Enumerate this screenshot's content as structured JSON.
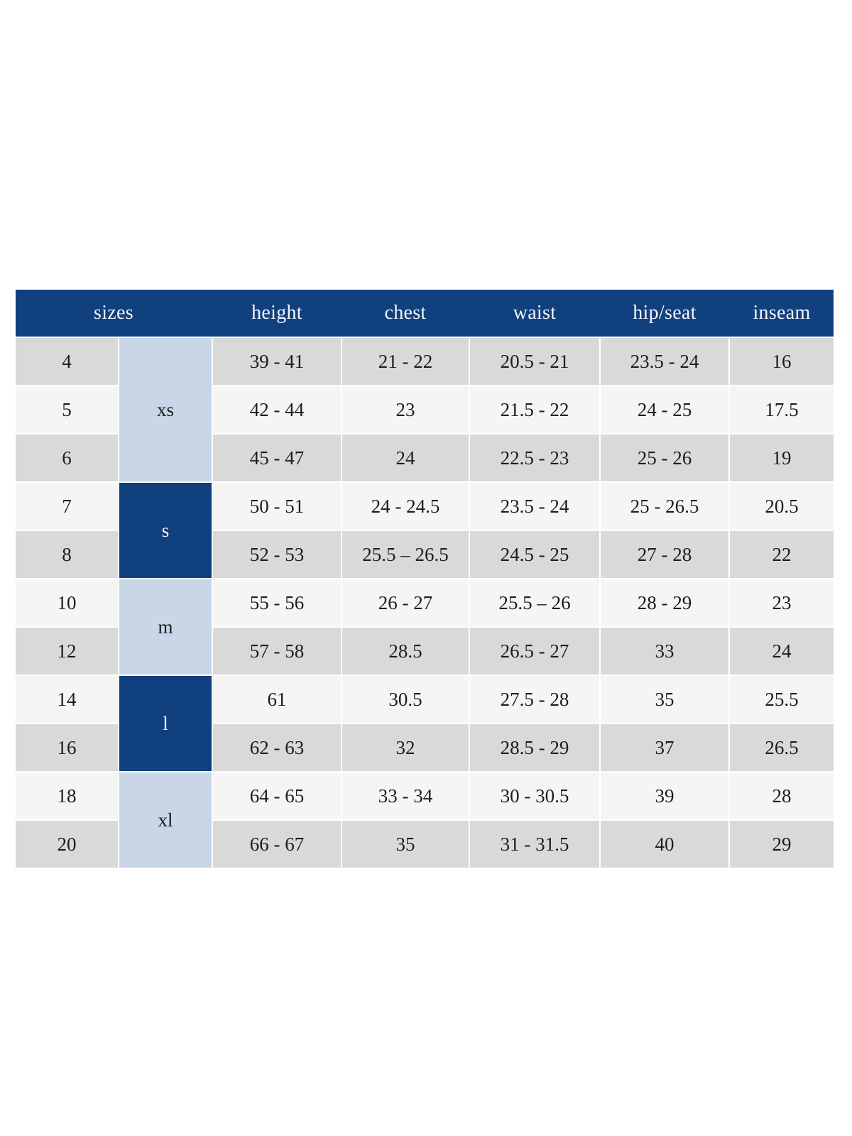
{
  "colors": {
    "navy": "#11407f",
    "light_blue": "#c9d6e7",
    "row_dark": "#d9d9d8",
    "row_light": "#f5f5f4",
    "header_text": "#f3f6fa",
    "cell_text": "#1c1c1c",
    "background": "#ffffff"
  },
  "chart_data": {
    "type": "table",
    "columns": [
      "sizes",
      "height",
      "chest",
      "waist",
      "hip/seat",
      "inseam"
    ],
    "groups": [
      {
        "label": "xs",
        "span": 3
      },
      {
        "label": "s",
        "span": 2
      },
      {
        "label": "m",
        "span": 2
      },
      {
        "label": "l",
        "span": 2
      },
      {
        "label": "xl",
        "span": 2
      }
    ],
    "rows": [
      {
        "size": "4",
        "group": "xs",
        "height": "39 - 41",
        "chest": "21 - 22",
        "waist": "20.5 - 21",
        "hip_seat": "23.5 - 24",
        "inseam": "16"
      },
      {
        "size": "5",
        "group": "xs",
        "height": "42 - 44",
        "chest": "23",
        "waist": "21.5 - 22",
        "hip_seat": "24 - 25",
        "inseam": "17.5"
      },
      {
        "size": "6",
        "group": "xs",
        "height": "45 - 47",
        "chest": "24",
        "waist": "22.5 - 23",
        "hip_seat": "25 - 26",
        "inseam": "19"
      },
      {
        "size": "7",
        "group": "s",
        "height": "50 - 51",
        "chest": "24 - 24.5",
        "waist": "23.5 - 24",
        "hip_seat": "25 - 26.5",
        "inseam": "20.5"
      },
      {
        "size": "8",
        "group": "s",
        "height": "52 - 53",
        "chest": "25.5 – 26.5",
        "waist": "24.5 - 25",
        "hip_seat": "27 - 28",
        "inseam": "22"
      },
      {
        "size": "10",
        "group": "m",
        "height": "55 - 56",
        "chest": "26 - 27",
        "waist": "25.5 – 26",
        "hip_seat": "28 - 29",
        "inseam": "23"
      },
      {
        "size": "12",
        "group": "m",
        "height": "57 - 58",
        "chest": "28.5",
        "waist": "26.5 - 27",
        "hip_seat": "33",
        "inseam": "24"
      },
      {
        "size": "14",
        "group": "l",
        "height": "61",
        "chest": "30.5",
        "waist": "27.5 - 28",
        "hip_seat": "35",
        "inseam": "25.5"
      },
      {
        "size": "16",
        "group": "l",
        "height": "62 - 63",
        "chest": "32",
        "waist": "28.5 - 29",
        "hip_seat": "37",
        "inseam": "26.5"
      },
      {
        "size": "18",
        "group": "xl",
        "height": "64 - 65",
        "chest": "33 - 34",
        "waist": "30 - 30.5",
        "hip_seat": "39",
        "inseam": "28"
      },
      {
        "size": "20",
        "group": "xl",
        "height": "66 - 67",
        "chest": "35",
        "waist": "31 - 31.5",
        "hip_seat": "40",
        "inseam": "29"
      }
    ]
  }
}
